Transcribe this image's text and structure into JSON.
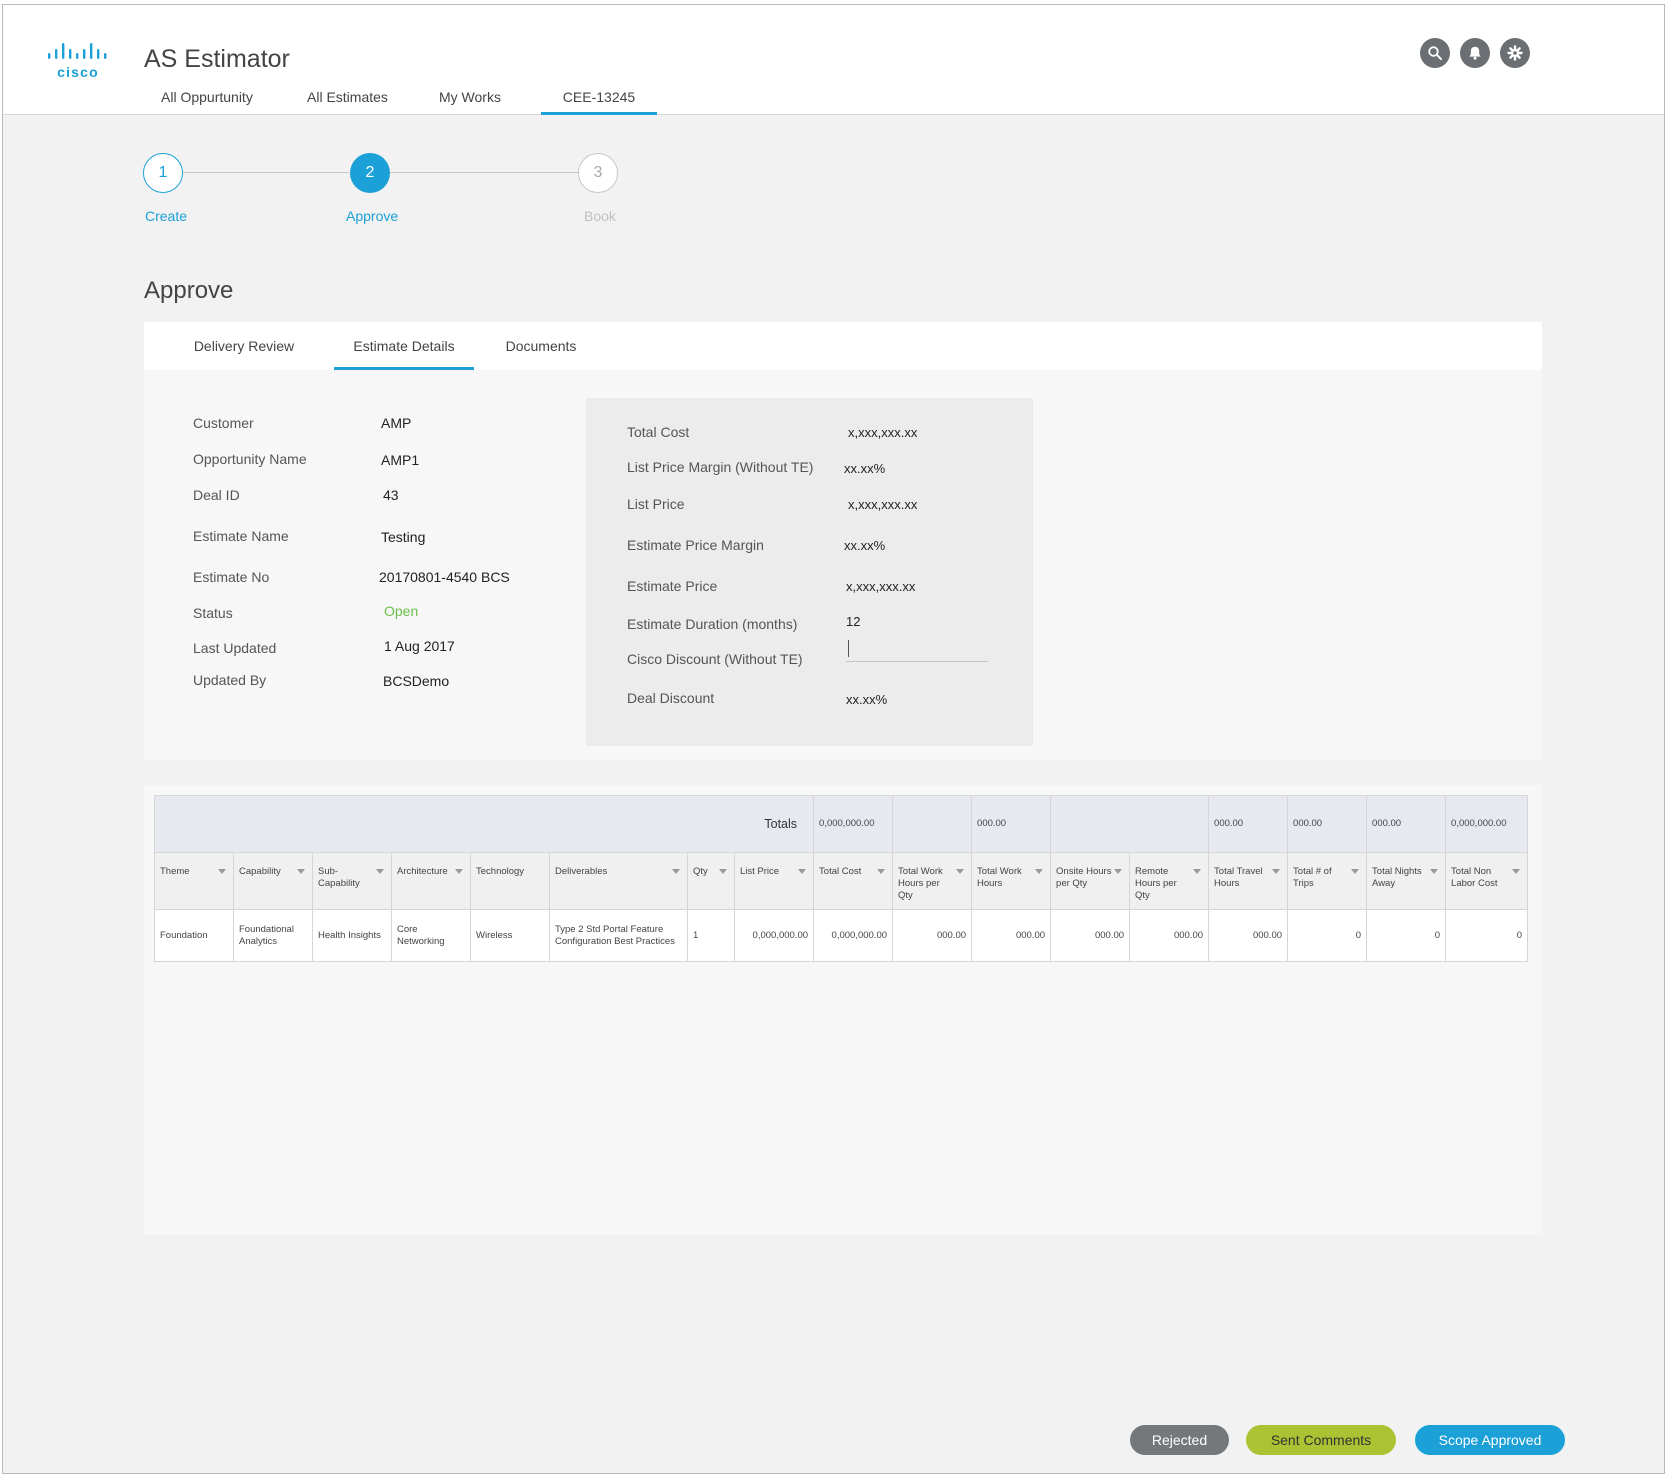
{
  "header": {
    "brand": "cisco",
    "app_title": "AS Estimator",
    "nav": [
      "All Oppurtunity",
      "All Estimates",
      "My Works",
      "CEE-13245"
    ],
    "active_nav": "CEE-13245",
    "icons": [
      "search-icon",
      "bell-icon",
      "gear-icon"
    ]
  },
  "stepper": {
    "steps": [
      {
        "number": "1",
        "label": "Create",
        "state": "done"
      },
      {
        "number": "2",
        "label": "Approve",
        "state": "active"
      },
      {
        "number": "3",
        "label": "Book",
        "state": "pending"
      }
    ]
  },
  "page_title": "Approve",
  "tabs": [
    "Delivery Review",
    "Estimate Details",
    "Documents"
  ],
  "active_tab": "Estimate Details",
  "details": [
    {
      "label": "Customer",
      "value": "AMP"
    },
    {
      "label": "Opportunity Name",
      "value": "AMP1"
    },
    {
      "label": "Deal ID",
      "value": "43"
    },
    {
      "label": "Estimate Name",
      "value": "Testing"
    },
    {
      "label": "Estimate No",
      "value": "20170801-4540 BCS"
    },
    {
      "label": "Status",
      "value": "Open"
    },
    {
      "label": "Last Updated",
      "value": "1 Aug 2017"
    },
    {
      "label": "Updated By",
      "value": "BCSDemo"
    }
  ],
  "summary": [
    {
      "label": "Total Cost",
      "value": "x,xxx,xxx.xx"
    },
    {
      "label": "List Price Margin (Without TE)",
      "value": "xx.xx%"
    },
    {
      "label": "List Price",
      "value": "x,xxx,xxx.xx"
    },
    {
      "label": "Estimate Price Margin",
      "value": "xx.xx%"
    },
    {
      "label": "Estimate Price",
      "value": "x,xxx,xxx.xx"
    },
    {
      "label": "Estimate Duration (months)",
      "value": "12"
    },
    {
      "label": "Cisco Discount (Without TE)",
      "value": ""
    },
    {
      "label": "Deal Discount",
      "value": "xx.xx%"
    }
  ],
  "table": {
    "totals_label": "Totals",
    "totals": [
      "0,000,000.00",
      "",
      "000.00",
      "",
      "",
      "000.00",
      "000.00",
      "000.00",
      "0,000,000.00"
    ],
    "columns": [
      "Theme",
      "Capability",
      "Sub-Capability",
      "Architecture",
      "Technology",
      "Deliverables",
      "Qty",
      "List Price",
      "Total Cost",
      "Total Work Hours per Qty",
      "Total Work Hours",
      "Onsite Hours per Qty",
      "Remote Hours per Qty",
      "Total Travel Hours",
      "Total # of Trips",
      "Total Nights Away",
      "Total Non Labor Cost"
    ],
    "rows": [
      [
        "Foundation",
        "Foundational Analytics",
        "Health Insights",
        "Core Networking",
        "Wireless",
        "Type 2 Std Portal Feature Configuration Best Practices",
        "1",
        "0,000,000.00",
        "0,000,000.00",
        "000.00",
        "000.00",
        "000.00",
        "000.00",
        "000.00",
        "0",
        "0",
        "0"
      ]
    ]
  },
  "actions": {
    "rejected": "Rejected",
    "sent_comments": "Sent Comments",
    "scope_approved": "Scope Approved"
  },
  "colors": {
    "accent": "#1ba0d7",
    "status_open": "#6cc04a",
    "rejected_btn": "#75787b",
    "comments_btn": "#abc233",
    "approved_btn": "#1ba0d7"
  }
}
